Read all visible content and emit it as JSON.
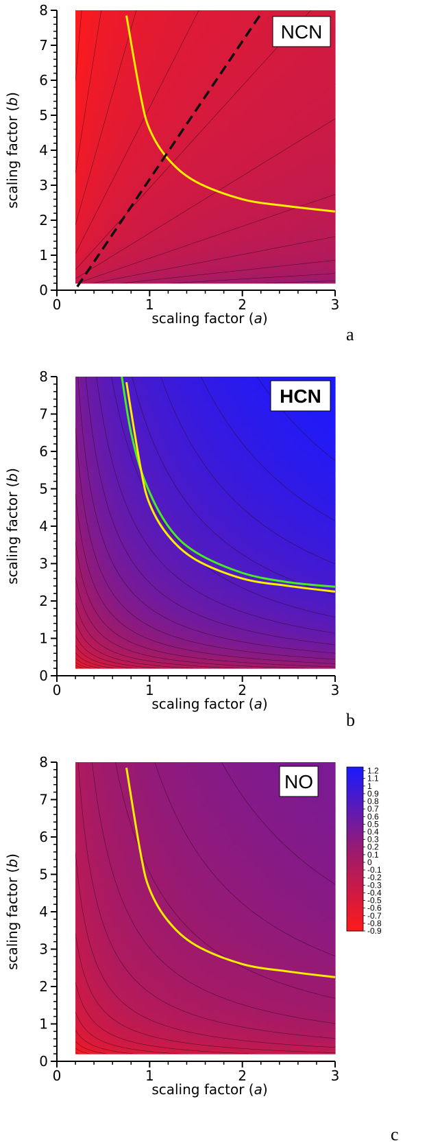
{
  "chart_data": [
    {
      "type": "heatmap",
      "panel": "a",
      "label": "NCN",
      "label_bold": false,
      "xlabel": "scaling factor (a)",
      "ylabel": "scaling factor (b)",
      "xlim": [
        0,
        3
      ],
      "ylim": [
        0,
        8
      ],
      "x_data_range": [
        0.2,
        3
      ],
      "y_data_range": [
        0.2,
        8
      ],
      "xticks": [
        0,
        1,
        2,
        3
      ],
      "yticks": [
        0,
        1,
        2,
        3,
        4,
        5,
        6,
        7,
        8
      ],
      "field": {
        "kind": "a_over_b",
        "value_at_low_a_high_b": -0.9,
        "value_at_high_a_low_b": 0.2
      },
      "lines": [
        {
          "color": "#ffee00",
          "style": "solid",
          "kind": "curve",
          "points": [
            [
              0.75,
              7.85
            ],
            [
              0.9,
              5.6
            ],
            [
              1.0,
              4.6
            ],
            [
              1.2,
              3.75
            ],
            [
              1.5,
              3.1
            ],
            [
              2.0,
              2.6
            ],
            [
              2.5,
              2.4
            ],
            [
              3.0,
              2.25
            ]
          ]
        },
        {
          "color": "#111111",
          "style": "dashed",
          "kind": "line",
          "points": [
            [
              0.22,
              0.1
            ],
            [
              2.2,
              7.9
            ]
          ]
        }
      ]
    },
    {
      "type": "heatmap",
      "panel": "b",
      "label": "HCN",
      "label_bold": true,
      "xlabel": "scaling factor (a)",
      "ylabel": "scaling factor (b)",
      "xlim": [
        0,
        3
      ],
      "ylim": [
        0,
        8
      ],
      "x_data_range": [
        0.2,
        3
      ],
      "y_data_range": [
        0.2,
        8
      ],
      "xticks": [
        0,
        1,
        2,
        3
      ],
      "yticks": [
        0,
        1,
        2,
        3,
        4,
        5,
        6,
        7,
        8
      ],
      "field": {
        "kind": "product",
        "value_at_origin": -0.9,
        "value_at_max": 1.25
      },
      "lines": [
        {
          "color": "#44ee22",
          "style": "solid",
          "kind": "curve",
          "points": [
            [
              0.7,
              8.0
            ],
            [
              0.8,
              6.5
            ],
            [
              0.95,
              5.2
            ],
            [
              1.2,
              4.0
            ],
            [
              1.5,
              3.3
            ],
            [
              2.0,
              2.75
            ],
            [
              2.5,
              2.5
            ],
            [
              3.0,
              2.38
            ]
          ]
        },
        {
          "color": "#ffee00",
          "style": "solid",
          "kind": "curve",
          "points": [
            [
              0.75,
              7.85
            ],
            [
              0.9,
              5.6
            ],
            [
              1.0,
              4.6
            ],
            [
              1.2,
              3.75
            ],
            [
              1.5,
              3.1
            ],
            [
              2.0,
              2.6
            ],
            [
              2.5,
              2.4
            ],
            [
              3.0,
              2.25
            ]
          ]
        }
      ]
    },
    {
      "type": "heatmap",
      "panel": "c",
      "label": "NO",
      "label_bold": false,
      "xlabel": "scaling factor (a)",
      "ylabel": "scaling factor (b)",
      "xlim": [
        0,
        3
      ],
      "ylim": [
        0,
        8
      ],
      "x_data_range": [
        0.2,
        3
      ],
      "y_data_range": [
        0.2,
        8
      ],
      "xticks": [
        0,
        1,
        2,
        3
      ],
      "yticks": [
        0,
        1,
        2,
        3,
        4,
        5,
        6,
        7,
        8
      ],
      "field": {
        "kind": "product",
        "value_at_origin": -0.9,
        "value_at_max": 0.45
      },
      "lines": [
        {
          "color": "#ffee00",
          "style": "solid",
          "kind": "curve",
          "points": [
            [
              0.75,
              7.85
            ],
            [
              0.9,
              5.6
            ],
            [
              1.0,
              4.6
            ],
            [
              1.2,
              3.75
            ],
            [
              1.5,
              3.1
            ],
            [
              2.0,
              2.6
            ],
            [
              2.5,
              2.4
            ],
            [
              3.0,
              2.25
            ]
          ]
        }
      ]
    }
  ],
  "colorbar": {
    "labels": [
      "1.2",
      "1.1",
      "1",
      "0.9",
      "0.8",
      "0.7",
      "0.6",
      "0.5",
      "0.4",
      "0.3",
      "0.2",
      "0.1",
      "0",
      "-0.1",
      "-0.2",
      "-0.3",
      "-0.4",
      "-0.5",
      "-0.6",
      "-0.7",
      "-0.8",
      "-0.9"
    ],
    "min": -0.9,
    "max": 1.25,
    "color_min": "#ff1a1a",
    "color_mid": "#9a1a70",
    "color_max": "#1a1aff"
  }
}
